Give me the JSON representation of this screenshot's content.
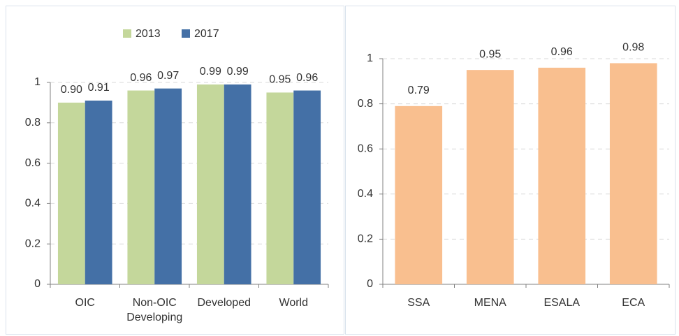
{
  "chart_data": [
    {
      "type": "bar",
      "categories": [
        "OIC",
        "Non-OIC Developing",
        "Developed",
        "World"
      ],
      "series": [
        {
          "name": "2013",
          "color": "#c4d79b",
          "values": [
            0.9,
            0.96,
            0.99,
            0.95
          ],
          "value_labels": [
            "0.90",
            "0.96",
            "0.99",
            "0.95"
          ]
        },
        {
          "name": "2017",
          "color": "#4470a6",
          "values": [
            0.91,
            0.97,
            0.99,
            0.96
          ],
          "value_labels": [
            "0.91",
            "0.97",
            "0.99",
            "0.96"
          ]
        }
      ],
      "ylim": [
        0,
        1
      ],
      "yticks": [
        0,
        0.2,
        0.4,
        0.6,
        0.8,
        1
      ],
      "grid": true,
      "legend": "top"
    },
    {
      "type": "bar",
      "categories": [
        "SSA",
        "MENA",
        "ESALA",
        "ECA"
      ],
      "values": [
        0.79,
        0.95,
        0.96,
        0.98
      ],
      "color": "#f9bf8f",
      "ylim": [
        0,
        1
      ],
      "yticks": [
        0,
        0.2,
        0.4,
        0.6,
        0.8,
        1
      ],
      "grid": true
    }
  ]
}
